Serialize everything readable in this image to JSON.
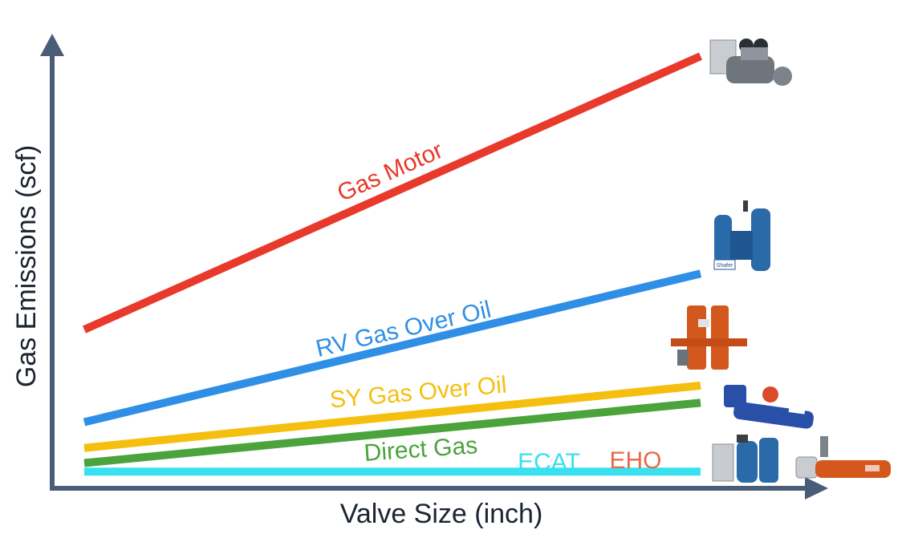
{
  "chart_data": {
    "type": "line",
    "xlabel": "Valve Size (inch)",
    "ylabel": "Gas Emissions (scf)",
    "x": [
      0,
      1
    ],
    "ylim": [
      0,
      1
    ],
    "grid": false,
    "legend": "inline labels",
    "axis_color": "#4a5d78",
    "series": [
      {
        "name": "Gas Motor",
        "values": [
          0.35,
          0.985
        ],
        "color": "#e8392b"
      },
      {
        "name": "RV Gas Over Oil",
        "values": [
          0.135,
          0.48
        ],
        "color": "#2f8fe6"
      },
      {
        "name": "SY Gas Over Oil",
        "values": [
          0.075,
          0.22
        ],
        "color": "#f5bf0f"
      },
      {
        "name": "Direct Gas",
        "values": [
          0.04,
          0.18
        ],
        "color": "#4aa33b"
      },
      {
        "name": "ECAT",
        "values": [
          0.02,
          0.02
        ],
        "color": "#38e0f0"
      }
    ],
    "annotations": [
      {
        "text": "EHO",
        "color": "#e8694a"
      }
    ]
  },
  "product_images": [
    {
      "name": "gas-motor-actuator-image"
    },
    {
      "name": "rv-gas-over-oil-actuator-image",
      "nameplate": "Shafer"
    },
    {
      "name": "sy-gas-over-oil-actuator-image"
    },
    {
      "name": "direct-gas-actuator-image"
    },
    {
      "name": "ecat-actuator-image"
    },
    {
      "name": "eho-actuator-image"
    }
  ]
}
